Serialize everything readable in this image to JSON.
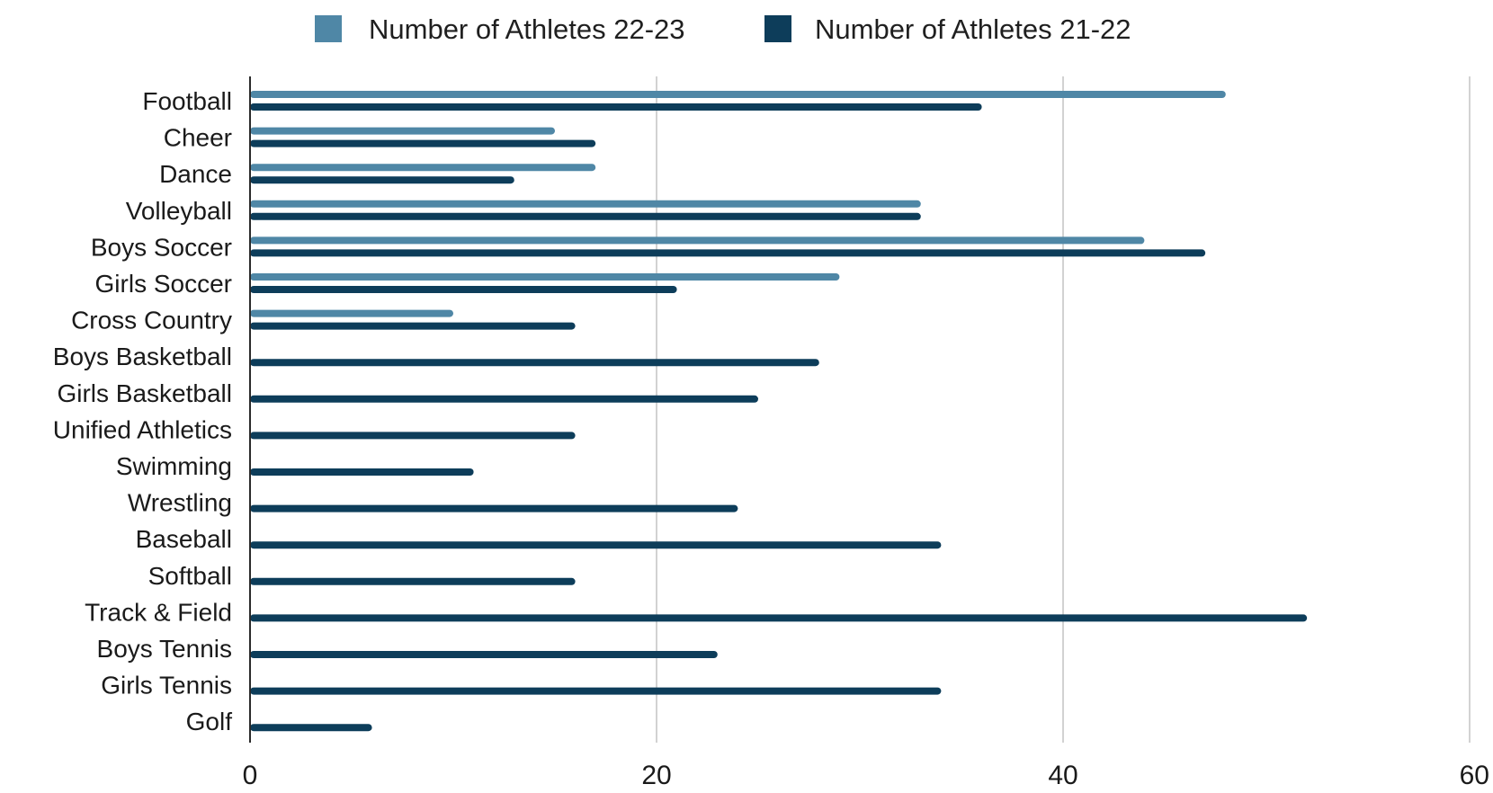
{
  "chart_data": {
    "type": "bar",
    "orientation": "horizontal",
    "categories": [
      "Football",
      "Cheer",
      "Dance",
      "Volleyball",
      "Boys Soccer",
      "Girls Soccer",
      "Cross Country",
      "Boys Basketball",
      "Girls Basketball",
      "Unified Athletics",
      "Swimming",
      "Wrestling",
      "Baseball",
      "Softball",
      "Track & Field",
      "Boys Tennis",
      "Girls Tennis",
      "Golf"
    ],
    "series": [
      {
        "name": "Number of Athletes 22-23",
        "color": "#4f87a6",
        "values": [
          48,
          15,
          17,
          33,
          44,
          29,
          10,
          null,
          null,
          null,
          null,
          null,
          null,
          null,
          null,
          null,
          null,
          null
        ]
      },
      {
        "name": "Number of Athletes 21-22",
        "color": "#0d3d5a",
        "values": [
          36,
          17,
          13,
          33,
          47,
          21,
          16,
          28,
          25,
          16,
          11,
          24,
          34,
          16,
          52,
          23,
          34,
          6
        ]
      }
    ],
    "x_ticks": [
      "0",
      "20",
      "40",
      "60"
    ],
    "xlim": [
      0,
      60
    ],
    "grid": true,
    "legend": "top-center",
    "title": "",
    "xlabel": "",
    "ylabel": ""
  }
}
